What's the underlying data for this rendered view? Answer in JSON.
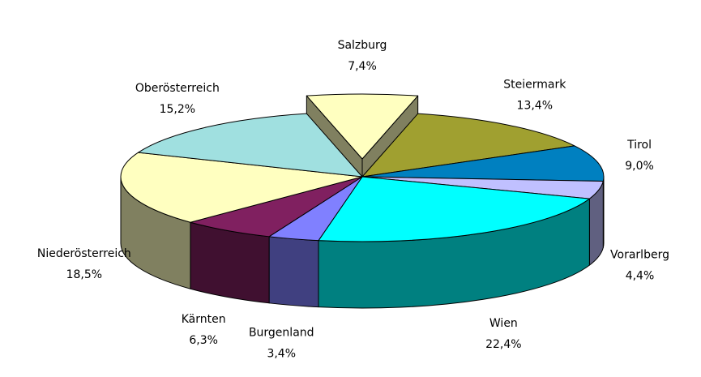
{
  "chart_data": {
    "type": "pie3d",
    "categories": [
      "Salzburg",
      "Steiermark",
      "Tirol",
      "Vorarlberg",
      "Wien",
      "Burgenland",
      "Kärnten",
      "Niederösterreich",
      "Oberösterreich"
    ],
    "values": [
      7.4,
      13.4,
      9.0,
      4.4,
      22.4,
      3.4,
      6.3,
      18.5,
      15.2
    ],
    "value_labels": [
      "7,4%",
      "13,4%",
      "9,0%",
      "4,4%",
      "22,4%",
      "3,4%",
      "6,3%",
      "18,5%",
      "15,2%"
    ],
    "colors": [
      "#ffffc0",
      "#a0a030",
      "#0080c0",
      "#c0c0ff",
      "#00ffff",
      "#8080ff",
      "#802060",
      "#ffffc0",
      "#a0e0e0"
    ],
    "exploded": "Salzburg"
  }
}
